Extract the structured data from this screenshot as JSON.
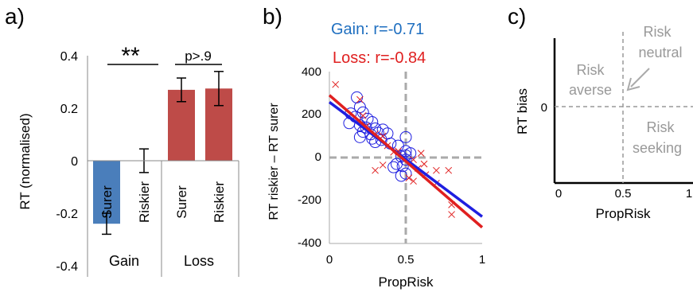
{
  "panel_a": {
    "letter": "a)",
    "ylabel": "RT (normalised)",
    "yticks": [
      "0.4",
      "0.2",
      "0",
      "-0.2",
      "-0.4"
    ],
    "sig_left": "**",
    "sig_right": "p>.9",
    "groups": [
      "Gain",
      "Loss"
    ],
    "colors": {
      "gain": "#4a7ebb",
      "loss": "#be4b48"
    }
  },
  "panel_b": {
    "letter": "b)",
    "gain_stat": "Gain: r=-0.71",
    "loss_stat": "Loss: r=-0.84",
    "ylabel": "RT riskier – RT surer",
    "xlabel": "PropRisk",
    "xticks": [
      "0",
      "0.5",
      "1"
    ],
    "yticks": [
      "400",
      "200",
      "0",
      "-200",
      "-400"
    ],
    "colors": {
      "gain": "#1f1fe0",
      "loss": "#e02020",
      "gain_text": "#1f6fc0",
      "loss_text": "#e02020"
    }
  },
  "panel_c": {
    "letter": "c)",
    "ylabel": "RT bias",
    "xlabel": "PropRisk",
    "xticks": [
      "0",
      "0.5",
      "1"
    ],
    "ytick_zero": "0",
    "q_averse": [
      "Risk",
      "averse"
    ],
    "q_neutral": [
      "Risk",
      "neutral"
    ],
    "q_seeking": [
      "Risk",
      "seeking"
    ]
  },
  "chart_data": [
    {
      "type": "bar",
      "categories": [
        "Surer",
        "Riskier",
        "Surer",
        "Riskier"
      ],
      "groups": [
        "Gain",
        "Gain",
        "Loss",
        "Loss"
      ],
      "values": [
        -0.24,
        0.0,
        0.27,
        0.275
      ],
      "errors": [
        0.04,
        0.045,
        0.045,
        0.065
      ],
      "ylabel": "RT (normalised)",
      "ylim": [
        -0.4,
        0.4
      ],
      "annotations": [
        "**",
        "p>.9"
      ]
    },
    {
      "type": "scatter",
      "xlabel": "PropRisk",
      "ylabel": "RT riskier – RT surer",
      "xlim": [
        0,
        1
      ],
      "ylim": [
        -400,
        400
      ],
      "series": [
        {
          "name": "Gain",
          "marker": "circle",
          "stat": "r=-0.71",
          "points": [
            [
              0.18,
              280
            ],
            [
              0.2,
              235
            ],
            [
              0.22,
              210
            ],
            [
              0.14,
              205
            ],
            [
              0.17,
              190
            ],
            [
              0.25,
              180
            ],
            [
              0.28,
              165
            ],
            [
              0.13,
              160
            ],
            [
              0.2,
              150
            ],
            [
              0.24,
              140
            ],
            [
              0.3,
              135
            ],
            [
              0.35,
              130
            ],
            [
              0.22,
              120
            ],
            [
              0.32,
              115
            ],
            [
              0.27,
              108
            ],
            [
              0.38,
              112
            ],
            [
              0.2,
              95
            ],
            [
              0.28,
              88
            ],
            [
              0.34,
              82
            ],
            [
              0.3,
              72
            ],
            [
              0.5,
              95
            ],
            [
              0.4,
              65
            ],
            [
              0.45,
              55
            ],
            [
              0.5,
              30
            ],
            [
              0.53,
              20
            ],
            [
              0.5,
              10
            ],
            [
              0.47,
              5
            ],
            [
              0.5,
              -10
            ],
            [
              0.44,
              -30
            ],
            [
              0.48,
              -40
            ],
            [
              0.42,
              -45
            ],
            [
              0.5,
              -75
            ],
            [
              0.47,
              -85
            ]
          ],
          "fit": [
            [
              0,
              258
            ],
            [
              1,
              -275
            ]
          ]
        },
        {
          "name": "Loss",
          "marker": "x",
          "stat": "r=-0.84",
          "points": [
            [
              0.04,
              340
            ],
            [
              0.2,
              270
            ],
            [
              0.22,
              195
            ],
            [
              0.24,
              145
            ],
            [
              0.3,
              110
            ],
            [
              0.35,
              100
            ],
            [
              0.38,
              55
            ],
            [
              0.42,
              25
            ],
            [
              0.45,
              30
            ],
            [
              0.55,
              -10
            ],
            [
              0.6,
              20
            ],
            [
              0.58,
              -50
            ],
            [
              0.62,
              -30
            ],
            [
              0.55,
              -110
            ],
            [
              0.63,
              -80
            ],
            [
              0.7,
              -60
            ],
            [
              0.7,
              -120
            ],
            [
              0.78,
              -60
            ],
            [
              0.8,
              -220
            ],
            [
              0.8,
              -265
            ],
            [
              0.3,
              -60
            ],
            [
              0.35,
              -35
            ],
            [
              0.52,
              -95
            ]
          ],
          "fit": [
            [
              0,
              290
            ],
            [
              1,
              -325
            ]
          ]
        }
      ]
    }
  ]
}
